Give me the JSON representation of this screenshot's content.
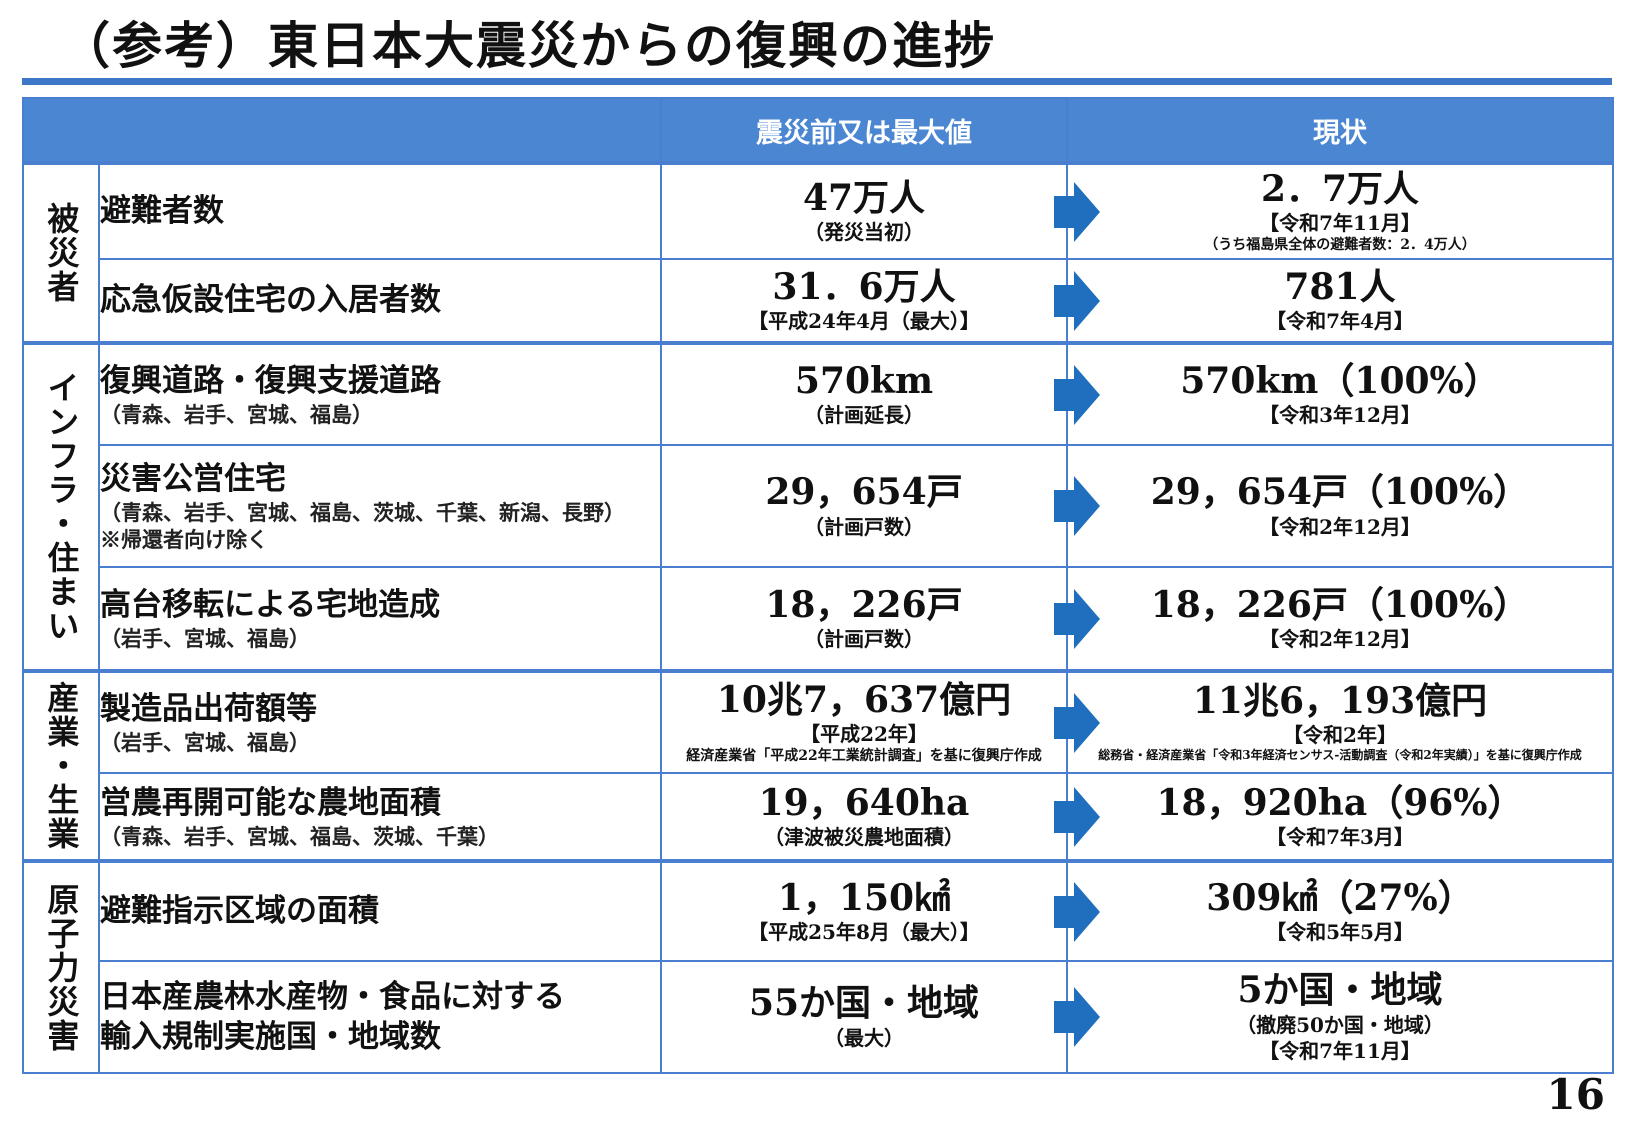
{
  "title": "（参考）東日本大震災からの復興の進捗",
  "page_number": "16",
  "header": {
    "before": "震災前又は最大値",
    "current": "現状"
  },
  "colors": {
    "accent": "#4a86d1",
    "arrow": "#1f6fbe"
  },
  "groups": [
    {
      "label": "被災者"
    },
    {
      "label": "インフラ・住まい"
    },
    {
      "label": "産業・生業"
    },
    {
      "label": "原子力災害"
    }
  ],
  "rows": [
    {
      "item": "避難者数",
      "item_sub": "",
      "item_note": "",
      "before_main": "47万人",
      "before_sub": "（発災当初）",
      "before_src": "",
      "after_main": "2．7万人",
      "after_sub": "【令和7年11月】",
      "after_src": "（うち福島県全体の避難者数：2．4万人）"
    },
    {
      "item": "応急仮設住宅の入居者数",
      "item_sub": "",
      "item_note": "",
      "before_main": "31．6万人",
      "before_sub": "【平成24年4月（最大）】",
      "before_src": "",
      "after_main": "781人",
      "after_sub": "【令和7年4月】",
      "after_src": ""
    },
    {
      "item": "復興道路・復興支援道路",
      "item_sub": "（青森、岩手、宮城、福島）",
      "item_note": "",
      "before_main": "570km",
      "before_sub": "（計画延長）",
      "before_src": "",
      "after_main": "570km（100%）",
      "after_sub": "【令和3年12月】",
      "after_src": ""
    },
    {
      "item": "災害公営住宅",
      "item_sub": "（青森、岩手、宮城、福島、茨城、千葉、新潟、長野）",
      "item_note": "※帰還者向け除く",
      "before_main": "29，654戸",
      "before_sub": "（計画戸数）",
      "before_src": "",
      "after_main": "29，654戸（100%）",
      "after_sub": "【令和2年12月】",
      "after_src": ""
    },
    {
      "item": "高台移転による宅地造成",
      "item_sub": "（岩手、宮城、福島）",
      "item_note": "",
      "before_main": "18，226戸",
      "before_sub": "（計画戸数）",
      "before_src": "",
      "after_main": "18，226戸（100%）",
      "after_sub": "【令和2年12月】",
      "after_src": ""
    },
    {
      "item": "製造品出荷額等",
      "item_sub": "（岩手、宮城、福島）",
      "item_note": "",
      "before_main": "10兆7，637億円",
      "before_sub": "【平成22年】",
      "before_src": "経済産業省「平成22年工業統計調査」を基に復興庁作成",
      "after_main": "11兆6，193億円",
      "after_sub": "【令和2年】",
      "after_src": "総務省・経済産業省「令和3年経済センサス-活動調査（令和2年実績）」を基に復興庁作成"
    },
    {
      "item": "営農再開可能な農地面積",
      "item_sub": "（青森、岩手、宮城、福島、茨城、千葉）",
      "item_note": "",
      "before_main": "19，640ha",
      "before_sub": "（津波被災農地面積）",
      "before_src": "",
      "after_main": "18，920ha（96%）",
      "after_sub": "【令和7年3月】",
      "after_src": ""
    },
    {
      "item": "避難指示区域の面積",
      "item_sub": "",
      "item_note": "",
      "before_main": "1，150㎢",
      "before_sub": "【平成25年8月（最大）】",
      "before_src": "",
      "after_main": "309㎢（27%）",
      "after_sub": "【令和5年5月】",
      "after_src": ""
    },
    {
      "item": "日本産農林水産物・食品に対する",
      "item_sub": "輸入規制実施国・地域数",
      "item_note": "",
      "before_main": "55か国・地域",
      "before_sub": "（最大）",
      "before_src": "",
      "after_main": "5か国・地域",
      "after_sub": "（撤廃50か国・地域）",
      "after_src": "【令和7年11月】"
    }
  ]
}
